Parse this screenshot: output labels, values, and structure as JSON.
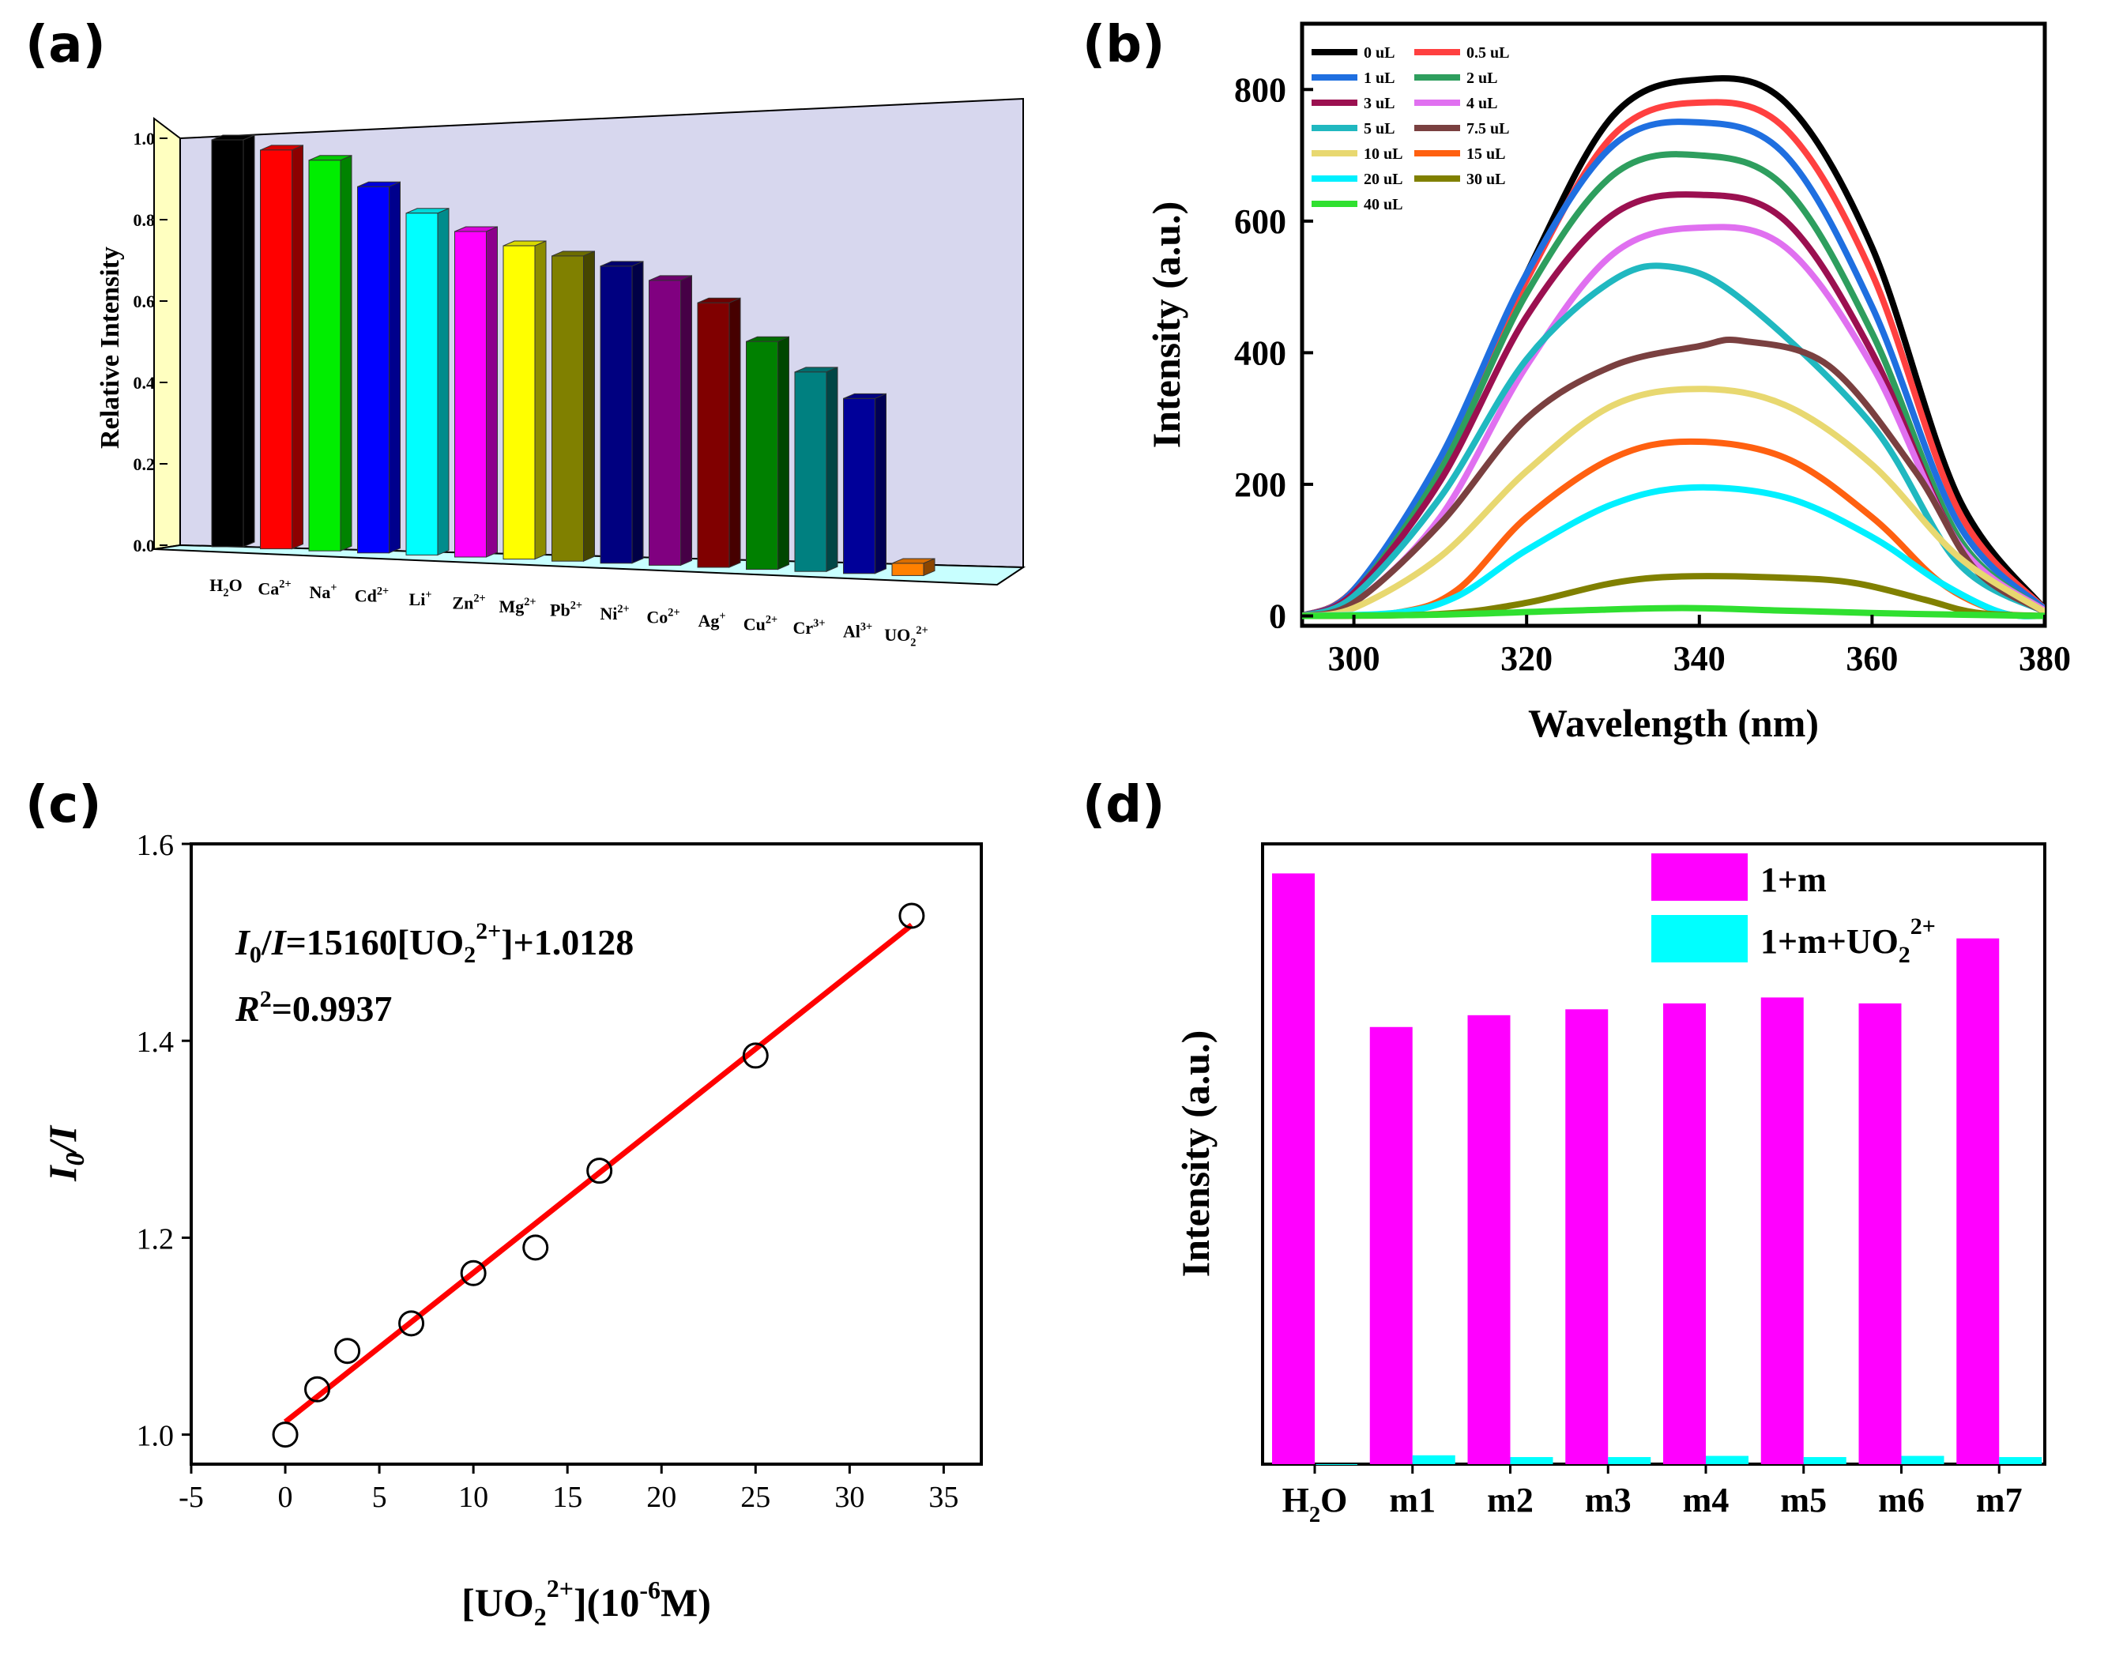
{
  "panels": {
    "a": "(a)",
    "b": "(b)",
    "c": "(c)",
    "d": "(d)"
  },
  "chart_data": [
    {
      "id": "a",
      "type": "bar",
      "ylabel": "Relative Intensity",
      "ylim": [
        0,
        1.0
      ],
      "yticks": [
        "0.0",
        "0.2",
        "0.4",
        "0.6",
        "0.8",
        "1.0"
      ],
      "categories": [
        {
          "base": "H",
          "sub": "2",
          "tail": "O",
          "sup": ""
        },
        {
          "base": "Ca",
          "sub": "",
          "tail": "",
          "sup": "2+"
        },
        {
          "base": "Na",
          "sub": "",
          "tail": "",
          "sup": "+"
        },
        {
          "base": "Cd",
          "sub": "",
          "tail": "",
          "sup": "2+"
        },
        {
          "base": "Li",
          "sub": "",
          "tail": "",
          "sup": "+"
        },
        {
          "base": "Zn",
          "sub": "",
          "tail": "",
          "sup": "2+"
        },
        {
          "base": "Mg",
          "sub": "",
          "tail": "",
          "sup": "2+"
        },
        {
          "base": "Pb",
          "sub": "",
          "tail": "",
          "sup": "2+"
        },
        {
          "base": "Ni",
          "sub": "",
          "tail": "",
          "sup": "2+"
        },
        {
          "base": "Co",
          "sub": "",
          "tail": "",
          "sup": "2+"
        },
        {
          "base": "Ag",
          "sub": "",
          "tail": "",
          "sup": "+"
        },
        {
          "base": "Cu",
          "sub": "",
          "tail": "",
          "sup": "2+"
        },
        {
          "base": "Cr",
          "sub": "",
          "tail": "",
          "sup": "3+"
        },
        {
          "base": "Al",
          "sub": "",
          "tail": "",
          "sup": "3+"
        },
        {
          "base": "UO",
          "sub": "2",
          "tail": "",
          "sup": "2+"
        }
      ],
      "values": [
        1.0,
        0.98,
        0.96,
        0.9,
        0.84,
        0.8,
        0.77,
        0.75,
        0.73,
        0.7,
        0.65,
        0.56,
        0.49,
        0.43,
        0.03
      ],
      "colors": [
        "#000000",
        "#ff0000",
        "#00ee00",
        "#0000ff",
        "#00ffff",
        "#ff00ff",
        "#ffff00",
        "#808000",
        "#000080",
        "#800080",
        "#800000",
        "#008000",
        "#008080",
        "#000099",
        "#ff8000"
      ]
    },
    {
      "id": "b",
      "type": "line",
      "xlabel": "Wavelength (nm)",
      "ylabel": "Intensity (a.u.)",
      "xlim": [
        294,
        380
      ],
      "ylim": [
        -15,
        900
      ],
      "xticks": [
        300,
        320,
        340,
        360,
        380
      ],
      "yticks": [
        0,
        200,
        400,
        600,
        800
      ],
      "series": [
        {
          "name": "0 uL",
          "color": "#000000",
          "peak": 815,
          "center": 339,
          "points": [
            [
              294,
              0
            ],
            [
              300,
              40
            ],
            [
              310,
              230
            ],
            [
              320,
              520
            ],
            [
              330,
              760
            ],
            [
              340,
              815
            ],
            [
              350,
              780
            ],
            [
              360,
              560
            ],
            [
              370,
              180
            ],
            [
              380,
              10
            ]
          ]
        },
        {
          "name": "0.5 uL",
          "color": "#ff4040",
          "peak": 780,
          "center": 339,
          "points": [
            [
              294,
              0
            ],
            [
              300,
              40
            ],
            [
              310,
              230
            ],
            [
              320,
              510
            ],
            [
              330,
              730
            ],
            [
              340,
              780
            ],
            [
              350,
              740
            ],
            [
              360,
              520
            ],
            [
              370,
              160
            ],
            [
              380,
              10
            ]
          ]
        },
        {
          "name": "1 uL",
          "color": "#1f6fe0",
          "peak": 750,
          "center": 338,
          "points": [
            [
              294,
              0
            ],
            [
              300,
              40
            ],
            [
              310,
              240
            ],
            [
              320,
              520
            ],
            [
              330,
              715
            ],
            [
              340,
              750
            ],
            [
              350,
              700
            ],
            [
              360,
              470
            ],
            [
              370,
              140
            ],
            [
              380,
              10
            ]
          ]
        },
        {
          "name": "2 uL",
          "color": "#2e9e5e",
          "peak": 700,
          "center": 337,
          "points": [
            [
              294,
              0
            ],
            [
              300,
              35
            ],
            [
              310,
              220
            ],
            [
              320,
              490
            ],
            [
              330,
              670
            ],
            [
              340,
              700
            ],
            [
              350,
              650
            ],
            [
              360,
              430
            ],
            [
              370,
              120
            ],
            [
              380,
              8
            ]
          ]
        },
        {
          "name": "3 uL",
          "color": "#9b1050",
          "peak": 640,
          "center": 338,
          "points": [
            [
              294,
              0
            ],
            [
              300,
              35
            ],
            [
              310,
              205
            ],
            [
              320,
              455
            ],
            [
              330,
              610
            ],
            [
              340,
              640
            ],
            [
              350,
              600
            ],
            [
              360,
              400
            ],
            [
              370,
              110
            ],
            [
              380,
              8
            ]
          ]
        },
        {
          "name": "4 uL",
          "color": "#e070f0",
          "peak": 590,
          "center": 339,
          "points": [
            [
              294,
              0
            ],
            [
              300,
              20
            ],
            [
              310,
              150
            ],
            [
              320,
              380
            ],
            [
              330,
              550
            ],
            [
              340,
              590
            ],
            [
              350,
              560
            ],
            [
              360,
              380
            ],
            [
              370,
              110
            ],
            [
              380,
              8
            ]
          ]
        },
        {
          "name": "5 uL",
          "color": "#20b8c0",
          "peak": 530,
          "center": 337,
          "points": [
            [
              294,
              0
            ],
            [
              300,
              30
            ],
            [
              310,
              180
            ],
            [
              320,
              390
            ],
            [
              330,
              510
            ],
            [
              337,
              530
            ],
            [
              345,
              480
            ],
            [
              360,
              290
            ],
            [
              370,
              80
            ],
            [
              380,
              6
            ]
          ]
        },
        {
          "name": "7.5 uL",
          "color": "#7a4040",
          "peak": 418,
          "center": 344,
          "points": [
            [
              294,
              0
            ],
            [
              300,
              20
            ],
            [
              310,
              140
            ],
            [
              320,
              300
            ],
            [
              330,
              380
            ],
            [
              340,
              410
            ],
            [
              345,
              418
            ],
            [
              355,
              380
            ],
            [
              365,
              220
            ],
            [
              372,
              70
            ],
            [
              380,
              6
            ]
          ]
        },
        {
          "name": "10 uL",
          "color": "#e8d870",
          "peak": 345,
          "center": 340,
          "points": [
            [
              294,
              0
            ],
            [
              300,
              12
            ],
            [
              310,
              90
            ],
            [
              320,
              220
            ],
            [
              330,
              320
            ],
            [
              340,
              345
            ],
            [
              350,
              320
            ],
            [
              360,
              230
            ],
            [
              370,
              90
            ],
            [
              380,
              6
            ]
          ]
        },
        {
          "name": "15 uL",
          "color": "#ff6010",
          "peak": 265,
          "center": 339,
          "points": [
            [
              294,
              0
            ],
            [
              305,
              5
            ],
            [
              312,
              40
            ],
            [
              320,
              150
            ],
            [
              330,
              240
            ],
            [
              339,
              265
            ],
            [
              350,
              240
            ],
            [
              360,
              150
            ],
            [
              368,
              50
            ],
            [
              375,
              5
            ],
            [
              380,
              0
            ]
          ]
        },
        {
          "name": "20 uL",
          "color": "#00f0ff",
          "peak": 195,
          "center": 339,
          "points": [
            [
              294,
              0
            ],
            [
              305,
              5
            ],
            [
              312,
              30
            ],
            [
              320,
              100
            ],
            [
              330,
              170
            ],
            [
              339,
              195
            ],
            [
              350,
              180
            ],
            [
              360,
              120
            ],
            [
              368,
              50
            ],
            [
              375,
              5
            ],
            [
              380,
              0
            ]
          ]
        },
        {
          "name": "30 uL",
          "color": "#808000",
          "peak": 60,
          "center": 340,
          "points": [
            [
              294,
              0
            ],
            [
              310,
              3
            ],
            [
              320,
              20
            ],
            [
              330,
              50
            ],
            [
              338,
              60
            ],
            [
              350,
              58
            ],
            [
              358,
              50
            ],
            [
              366,
              25
            ],
            [
              372,
              5
            ],
            [
              380,
              0
            ]
          ]
        },
        {
          "name": "40 uL",
          "color": "#30e030",
          "peak": 12,
          "center": 338,
          "points": [
            [
              294,
              0
            ],
            [
              310,
              2
            ],
            [
              325,
              8
            ],
            [
              338,
              12
            ],
            [
              350,
              8
            ],
            [
              365,
              3
            ],
            [
              380,
              0
            ]
          ]
        }
      ]
    },
    {
      "id": "c",
      "type": "scatter",
      "xlabel_parts": {
        "a": "[UO",
        "sub": "2",
        "sup": "2+",
        "b": "](10",
        "sup2": "-6",
        "c": "M)"
      },
      "ylabel": "I0/I",
      "xlim": [
        -5,
        37
      ],
      "ylim": [
        0.97,
        1.6
      ],
      "xticks": [
        -5,
        0,
        5,
        10,
        15,
        20,
        25,
        30,
        35
      ],
      "yticks": [
        "1.0",
        "1.2",
        "1.4",
        "1.6"
      ],
      "points": [
        [
          0,
          1.0
        ],
        [
          1.7,
          1.046
        ],
        [
          3.3,
          1.085
        ],
        [
          6.7,
          1.113
        ],
        [
          10,
          1.164
        ],
        [
          13.3,
          1.19
        ],
        [
          16.7,
          1.268
        ],
        [
          25,
          1.385
        ],
        [
          33.3,
          1.527
        ]
      ],
      "fit": {
        "slope": 0.01516,
        "intercept": 1.0128,
        "x_range": [
          0,
          33.3
        ]
      },
      "equation_parts": {
        "i0": "I",
        "i0sub": "0",
        "slash": "/",
        "i": "I",
        "eq": "=15160[UO",
        "sub": "2",
        "sup": "2+",
        "tail": "]+1.0128"
      },
      "r2_parts": {
        "r": "R",
        "sup": "2",
        "val": "=0.9937"
      }
    },
    {
      "id": "d",
      "type": "bar",
      "ylabel": "Intensity  (a.u.)",
      "categories": [
        {
          "base": "H",
          "sub": "2",
          "tail": "O"
        },
        {
          "base": "m1",
          "sub": "",
          "tail": ""
        },
        {
          "base": "m2",
          "sub": "",
          "tail": ""
        },
        {
          "base": "m3",
          "sub": "",
          "tail": ""
        },
        {
          "base": "m4",
          "sub": "",
          "tail": ""
        },
        {
          "base": "m5",
          "sub": "",
          "tail": ""
        },
        {
          "base": "m6",
          "sub": "",
          "tail": ""
        },
        {
          "base": "m7",
          "sub": "",
          "tail": ""
        }
      ],
      "ymax": 1.05,
      "series": [
        {
          "name": "1+m",
          "color": "#ff00ff",
          "values": [
            1.0,
            0.74,
            0.76,
            0.77,
            0.78,
            0.79,
            0.78,
            0.89
          ]
        },
        {
          "name": "1+m+UO22+",
          "label_parts": {
            "a": "1+m+UO",
            "sub": "2",
            "sup": "2+"
          },
          "color": "#00ffff",
          "values": [
            0.0,
            0.015,
            0.012,
            0.012,
            0.014,
            0.012,
            0.014,
            0.012
          ]
        }
      ]
    }
  ]
}
